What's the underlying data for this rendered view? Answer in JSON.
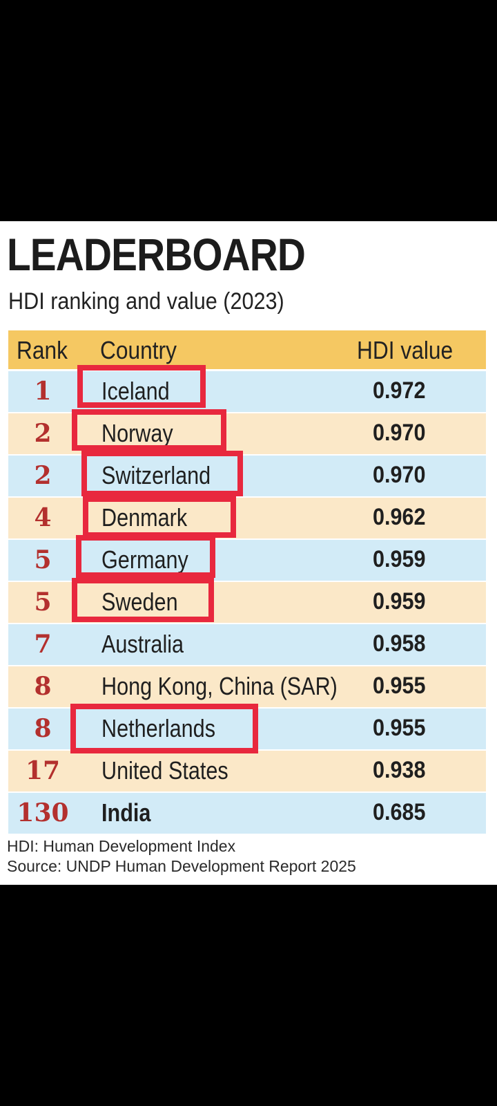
{
  "title": "LEADERBOARD",
  "subtitle": "HDI ranking and value (2023)",
  "table": {
    "headers": {
      "rank": "Rank",
      "country": "Country",
      "hdi": "HDI value"
    },
    "rows": [
      {
        "rank": "1",
        "country": "Iceland",
        "hdi": "0.972"
      },
      {
        "rank": "2",
        "country": "Norway",
        "hdi": "0.970"
      },
      {
        "rank": "2",
        "country": "Switzerland",
        "hdi": "0.970"
      },
      {
        "rank": "4",
        "country": "Denmark",
        "hdi": "0.962"
      },
      {
        "rank": "5",
        "country": "Germany",
        "hdi": "0.959"
      },
      {
        "rank": "5",
        "country": "Sweden",
        "hdi": "0.959"
      },
      {
        "rank": "7",
        "country": "Australia",
        "hdi": "0.958"
      },
      {
        "rank": "8",
        "country": "Hong Kong, China (SAR)",
        "hdi": "0.955"
      },
      {
        "rank": "8",
        "country": "Netherlands",
        "hdi": "0.955"
      },
      {
        "rank": "17",
        "country": "United States",
        "hdi": "0.938"
      },
      {
        "rank": "130",
        "country": "India",
        "hdi": "0.685"
      }
    ]
  },
  "notes": {
    "definition": "HDI: Human Development Index",
    "source": "Source: UNDP Human Development Report 2025"
  },
  "colors": {
    "header_bg": "#f5c862",
    "row_blue": "#d2ebf7",
    "row_peach": "#fbe8c8",
    "rank_text": "#b3302e",
    "highlight_box": "#e8283e"
  },
  "chart_data": {
    "type": "table",
    "title": "LEADERBOARD",
    "subtitle": "HDI ranking and value (2023)",
    "columns": [
      "Rank",
      "Country",
      "HDI value"
    ],
    "rows": [
      [
        1,
        "Iceland",
        0.972
      ],
      [
        2,
        "Norway",
        0.97
      ],
      [
        2,
        "Switzerland",
        0.97
      ],
      [
        4,
        "Denmark",
        0.962
      ],
      [
        5,
        "Germany",
        0.959
      ],
      [
        5,
        "Sweden",
        0.959
      ],
      [
        7,
        "Australia",
        0.958
      ],
      [
        8,
        "Hong Kong, China (SAR)",
        0.955
      ],
      [
        8,
        "Netherlands",
        0.955
      ],
      [
        17,
        "United States",
        0.938
      ],
      [
        130,
        "India",
        0.685
      ]
    ]
  }
}
